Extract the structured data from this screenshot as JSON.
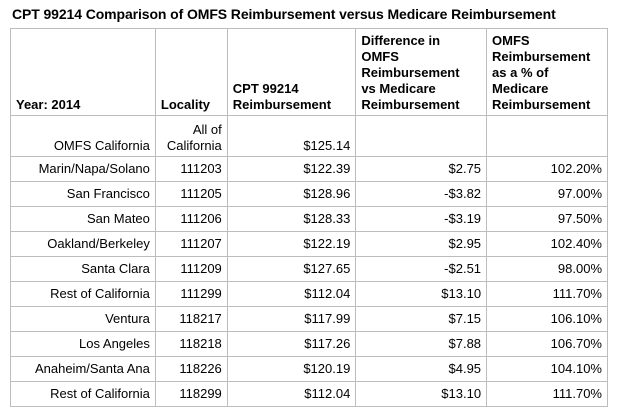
{
  "title": "CPT 99214 Comparison of OMFS Reimbursement versus Medicare Reimbursement",
  "headers": {
    "year": "Year: 2014",
    "locality": "Locality",
    "cpt": "CPT 99214\nReimbursement",
    "difference": "Difference in\nOMFS\nReimbursement\nvs Medicare\nReimbursement",
    "percent": "OMFS\nReimbursement\nas a % of\nMedicare\nReimbursement"
  },
  "rows": [
    {
      "name": "OMFS California",
      "locality": "All of\nCalifornia",
      "cpt": "$125.14",
      "difference": "",
      "percent": ""
    },
    {
      "name": "Marin/Napa/Solano",
      "locality": "111203",
      "cpt": "$122.39",
      "difference": "$2.75",
      "percent": "102.20%"
    },
    {
      "name": "San Francisco",
      "locality": "111205",
      "cpt": "$128.96",
      "difference": "-$3.82",
      "percent": "97.00%"
    },
    {
      "name": "San Mateo",
      "locality": "111206",
      "cpt": "$128.33",
      "difference": "-$3.19",
      "percent": "97.50%"
    },
    {
      "name": "Oakland/Berkeley",
      "locality": "111207",
      "cpt": "$122.19",
      "difference": "$2.95",
      "percent": "102.40%"
    },
    {
      "name": "Santa Clara",
      "locality": "111209",
      "cpt": "$127.65",
      "difference": "-$2.51",
      "percent": "98.00%"
    },
    {
      "name": "Rest of California",
      "locality": "111299",
      "cpt": "$112.04",
      "difference": "$13.10",
      "percent": "111.70%"
    },
    {
      "name": "Ventura",
      "locality": "118217",
      "cpt": "$117.99",
      "difference": "$7.15",
      "percent": "106.10%"
    },
    {
      "name": "Los Angeles",
      "locality": "118218",
      "cpt": "$117.26",
      "difference": "$7.88",
      "percent": "106.70%"
    },
    {
      "name": "Anaheim/Santa Ana",
      "locality": "118226",
      "cpt": "$120.19",
      "difference": "$4.95",
      "percent": "104.10%"
    },
    {
      "name": "Rest of California",
      "locality": "118299",
      "cpt": "$112.04",
      "difference": "$13.10",
      "percent": "111.70%"
    }
  ]
}
